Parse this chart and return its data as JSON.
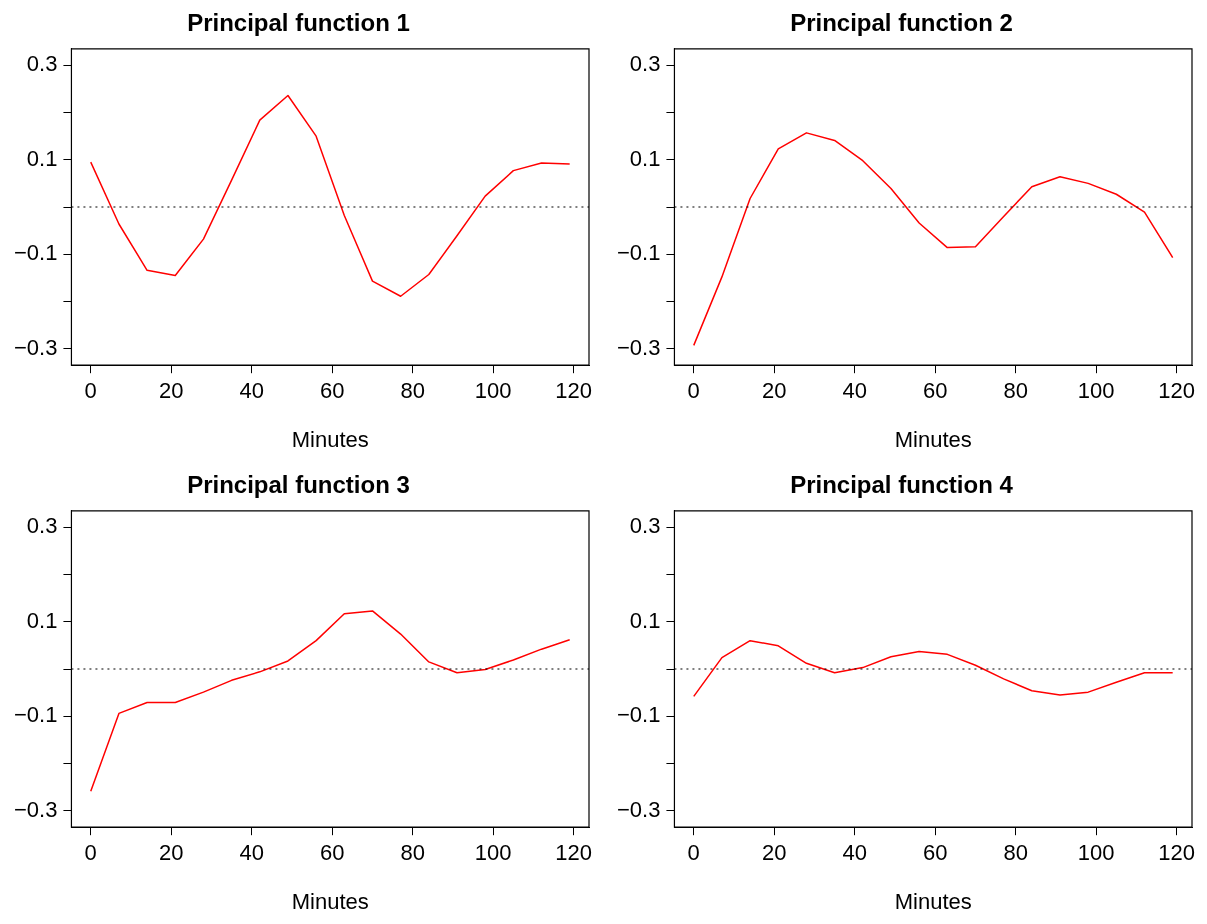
{
  "chart_data": [
    {
      "type": "line",
      "title": "Principal function 1",
      "xlabel": "Minutes",
      "x": [
        0,
        7,
        14,
        21,
        28,
        35,
        42,
        49,
        56,
        63,
        70,
        77,
        84,
        91,
        98,
        105,
        112,
        119
      ],
      "series": [
        {
          "color": "#ff0000",
          "values": [
            0.095,
            -0.036,
            -0.134,
            -0.145,
            -0.068,
            0.057,
            0.184,
            0.236,
            0.15,
            -0.018,
            -0.157,
            -0.189,
            -0.143,
            -0.061,
            0.023,
            0.077,
            0.093,
            0.091
          ]
        }
      ],
      "xlim": [
        -4.8,
        123.8
      ],
      "ylim": [
        -0.335,
        0.335
      ],
      "xticks": [
        0,
        20,
        40,
        60,
        80,
        100,
        120
      ],
      "yticks": [
        {
          "value": -0.3,
          "label": "−0.3"
        },
        {
          "value": -0.2,
          "label": null
        },
        {
          "value": -0.1,
          "label": "−0.1"
        },
        {
          "value": 0,
          "label": null
        },
        {
          "value": 0.1,
          "label": "0.1"
        },
        {
          "value": 0.2,
          "label": null
        },
        {
          "value": 0.3,
          "label": "0.3"
        }
      ],
      "ref_lines": [
        {
          "axis": "y",
          "value": 0,
          "color": "#000000",
          "line_style": "dotted"
        }
      ],
      "grid": false,
      "legend": false,
      "marker": "none"
    },
    {
      "type": "line",
      "title": "Principal function 2",
      "xlabel": "Minutes",
      "x": [
        0,
        7,
        14,
        21,
        28,
        35,
        42,
        49,
        56,
        63,
        70,
        77,
        84,
        91,
        98,
        105,
        112,
        119
      ],
      "series": [
        {
          "color": "#ff0000",
          "values": [
            -0.293,
            -0.148,
            0.018,
            0.123,
            0.157,
            0.141,
            0.098,
            0.039,
            -0.034,
            -0.086,
            -0.084,
            -0.02,
            0.043,
            0.064,
            0.05,
            0.027,
            -0.011,
            -0.107
          ]
        }
      ],
      "xlim": [
        -4.8,
        123.8
      ],
      "ylim": [
        -0.335,
        0.335
      ],
      "xticks": [
        0,
        20,
        40,
        60,
        80,
        100,
        120
      ],
      "yticks": [
        {
          "value": -0.3,
          "label": "−0.3"
        },
        {
          "value": -0.2,
          "label": null
        },
        {
          "value": -0.1,
          "label": "−0.1"
        },
        {
          "value": 0,
          "label": null
        },
        {
          "value": 0.1,
          "label": "0.1"
        },
        {
          "value": 0.2,
          "label": null
        },
        {
          "value": 0.3,
          "label": "0.3"
        }
      ],
      "ref_lines": [
        {
          "axis": "y",
          "value": 0,
          "color": "#000000",
          "line_style": "dotted"
        }
      ],
      "grid": false,
      "legend": false,
      "marker": "none"
    },
    {
      "type": "line",
      "title": "Principal function 3",
      "xlabel": "Minutes",
      "x": [
        0,
        7,
        14,
        21,
        28,
        35,
        42,
        49,
        56,
        63,
        70,
        77,
        84,
        91,
        98,
        105,
        112,
        119
      ],
      "series": [
        {
          "color": "#ff0000",
          "values": [
            -0.259,
            -0.094,
            -0.071,
            -0.071,
            -0.049,
            -0.024,
            -0.006,
            0.017,
            0.06,
            0.117,
            0.123,
            0.074,
            0.015,
            -0.008,
            -0.001,
            0.019,
            0.042,
            0.062
          ]
        }
      ],
      "xlim": [
        -4.8,
        123.8
      ],
      "ylim": [
        -0.335,
        0.335
      ],
      "xticks": [
        0,
        20,
        40,
        60,
        80,
        100,
        120
      ],
      "yticks": [
        {
          "value": -0.3,
          "label": "−0.3"
        },
        {
          "value": -0.2,
          "label": null
        },
        {
          "value": -0.1,
          "label": "−0.1"
        },
        {
          "value": 0,
          "label": null
        },
        {
          "value": 0.1,
          "label": "0.1"
        },
        {
          "value": 0.2,
          "label": null
        },
        {
          "value": 0.3,
          "label": "0.3"
        }
      ],
      "ref_lines": [
        {
          "axis": "y",
          "value": 0,
          "color": "#000000",
          "line_style": "dotted"
        }
      ],
      "grid": false,
      "legend": false,
      "marker": "none"
    },
    {
      "type": "line",
      "title": "Principal function 4",
      "xlabel": "Minutes",
      "x": [
        0,
        7,
        14,
        21,
        28,
        35,
        42,
        49,
        56,
        63,
        70,
        77,
        84,
        91,
        98,
        105,
        112,
        119
      ],
      "series": [
        {
          "color": "#ff0000",
          "values": [
            -0.058,
            0.024,
            0.06,
            0.049,
            0.012,
            -0.008,
            0.003,
            0.026,
            0.037,
            0.031,
            0.008,
            -0.021,
            -0.046,
            -0.055,
            -0.049,
            -0.028,
            -0.008,
            -0.008
          ]
        }
      ],
      "xlim": [
        -4.8,
        123.8
      ],
      "ylim": [
        -0.335,
        0.335
      ],
      "xticks": [
        0,
        20,
        40,
        60,
        80,
        100,
        120
      ],
      "yticks": [
        {
          "value": -0.3,
          "label": "−0.3"
        },
        {
          "value": -0.2,
          "label": null
        },
        {
          "value": -0.1,
          "label": "−0.1"
        },
        {
          "value": 0,
          "label": null
        },
        {
          "value": 0.1,
          "label": "0.1"
        },
        {
          "value": 0.2,
          "label": null
        },
        {
          "value": 0.3,
          "label": "0.3"
        }
      ],
      "ref_lines": [
        {
          "axis": "y",
          "value": 0,
          "color": "#000000",
          "line_style": "dotted"
        }
      ],
      "grid": false,
      "legend": false,
      "marker": "none"
    }
  ]
}
